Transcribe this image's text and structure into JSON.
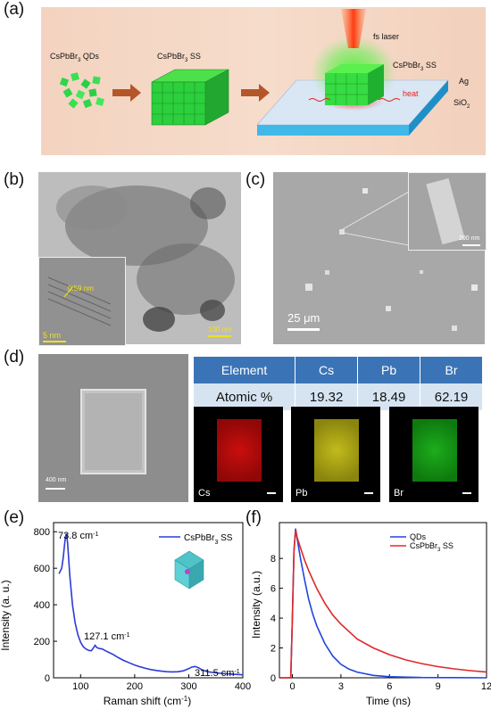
{
  "panels": {
    "a": "(a)",
    "b": "(b)",
    "c": "(c)",
    "d": "(d)",
    "e": "(e)",
    "f": "(f)"
  },
  "schematic": {
    "qds_label_main": "CsPbBr",
    "qds_label_sub": "3",
    "qds_label_tail": " QDs",
    "ss_label_main": "CsPbBr",
    "ss_label_sub": "3",
    "ss_label_tail": " SS",
    "laser_label": "fs laser",
    "ss2_label_main": "CsPbBr",
    "ss2_label_sub": "3",
    "ss2_label_tail": " SS",
    "heat_label": "heat",
    "ag_label": "Ag",
    "sio2_main": "SiO",
    "sio2_sub": "2"
  },
  "tem": {
    "lattice_label": "0.59 nm",
    "inset_scale": "5 nm",
    "main_scale": "100 nm"
  },
  "sem": {
    "inset_scale": "200 nm",
    "main_scale": "25 μm"
  },
  "eds": {
    "sem_scale": "400 nm",
    "header": [
      "Element",
      "Cs",
      "Pb",
      "Br"
    ],
    "values": [
      "Atomic %",
      "19.32",
      "18.49",
      "62.19"
    ],
    "maps": [
      {
        "label": "Cs",
        "color": "#e01010"
      },
      {
        "label": "Pb",
        "color": "#d8d020"
      },
      {
        "label": "Br",
        "color": "#20c020"
      }
    ]
  },
  "chart_data": [
    {
      "type": "line",
      "panel": "e",
      "xlabel": "Raman shift (cm-1)",
      "ylabel": "Intensity (a. u.)",
      "xlim": [
        50,
        400
      ],
      "ylim": [
        0,
        850
      ],
      "xticks": [
        "100",
        "200",
        "300",
        "400"
      ],
      "yticks": [
        "0",
        "200",
        "400",
        "600",
        "800"
      ],
      "legend": "top-right",
      "annotations": [
        "73.8 cm",
        "127.1 cm",
        "311.5 cm"
      ],
      "annotation_sup": "-1",
      "series": [
        {
          "name": "CsPbBr3 SS",
          "color": "#2c3bd6",
          "x": [
            60,
            65,
            68,
            70,
            72,
            73.8,
            76,
            80,
            85,
            90,
            95,
            100,
            105,
            110,
            115,
            120,
            124,
            127,
            130,
            135,
            140,
            145,
            150,
            160,
            170,
            180,
            190,
            200,
            210,
            220,
            230,
            240,
            250,
            260,
            270,
            280,
            290,
            300,
            305,
            311.5,
            318,
            325,
            335,
            350,
            370,
            390,
            400
          ],
          "y": [
            570,
            600,
            660,
            720,
            770,
            790,
            740,
            560,
            400,
            300,
            235,
            195,
            170,
            158,
            150,
            148,
            165,
            178,
            165,
            160,
            158,
            150,
            142,
            128,
            110,
            95,
            82,
            70,
            60,
            52,
            45,
            40,
            36,
            33,
            32,
            33,
            38,
            50,
            58,
            62,
            55,
            42,
            33,
            27,
            22,
            18,
            16
          ]
        }
      ]
    },
    {
      "type": "line",
      "panel": "f",
      "xlabel": "Time (ns)",
      "ylabel": "Intensity (a.u.)",
      "xlim": [
        -0.8,
        12
      ],
      "ylim": [
        0,
        10.4
      ],
      "xticks": [
        "0",
        "3",
        "6",
        "9",
        "12"
      ],
      "yticks": [
        "0",
        "2",
        "4",
        "6",
        "8"
      ],
      "legend": "top-right",
      "series": [
        {
          "name": "QDs",
          "color": "#2244dd",
          "x": [
            -0.8,
            -0.1,
            0.0,
            0.1,
            0.2,
            0.3,
            0.5,
            0.75,
            1.0,
            1.25,
            1.5,
            2.0,
            2.5,
            3.0,
            3.5,
            4.0,
            5.0,
            6.0,
            8.0,
            10.0,
            12.0
          ],
          "y": [
            0,
            0,
            4.0,
            8.5,
            10.0,
            9.3,
            8.0,
            6.6,
            5.3,
            4.3,
            3.5,
            2.3,
            1.45,
            0.9,
            0.58,
            0.38,
            0.16,
            0.07,
            0.02,
            0.01,
            0.0
          ]
        },
        {
          "name": "CsPbBr3 SS",
          "color": "#e02828",
          "x": [
            -0.8,
            -0.1,
            0.0,
            0.1,
            0.2,
            0.3,
            0.5,
            0.75,
            1.0,
            1.5,
            2.0,
            2.5,
            3.0,
            4.0,
            5.0,
            6.0,
            7.0,
            8.0,
            9.0,
            10.0,
            11.0,
            12.0
          ],
          "y": [
            0,
            0,
            4.0,
            8.5,
            9.9,
            9.4,
            8.7,
            7.9,
            7.2,
            6.0,
            5.0,
            4.2,
            3.6,
            2.6,
            2.0,
            1.55,
            1.2,
            0.95,
            0.75,
            0.6,
            0.48,
            0.38
          ]
        }
      ]
    }
  ]
}
